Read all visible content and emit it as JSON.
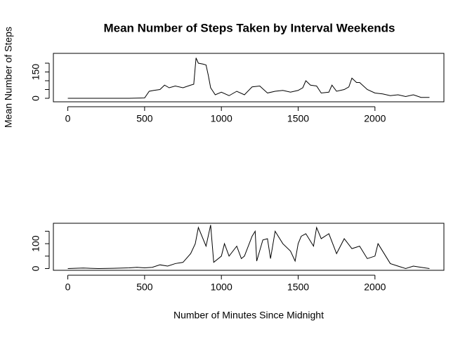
{
  "chart_data": [
    {
      "type": "line",
      "title": "Mean Number of Steps Taken by Interval Weekends",
      "y_label": "Mean Number of Steps",
      "x": [
        0,
        100,
        200,
        300,
        400,
        500,
        530,
        560,
        600,
        630,
        660,
        700,
        750,
        800,
        820,
        835,
        850,
        880,
        900,
        915,
        930,
        960,
        1000,
        1050,
        1100,
        1150,
        1200,
        1250,
        1300,
        1350,
        1400,
        1450,
        1500,
        1530,
        1550,
        1580,
        1620,
        1650,
        1700,
        1720,
        1750,
        1800,
        1830,
        1850,
        1880,
        1900,
        1950,
        2000,
        2050,
        2100,
        2150,
        2200,
        2250,
        2300,
        2355
      ],
      "series": [
        {
          "color": "#000000",
          "values": [
            0,
            0,
            0,
            0,
            0,
            2,
            40,
            45,
            50,
            75,
            60,
            70,
            60,
            75,
            80,
            230,
            200,
            195,
            190,
            130,
            60,
            20,
            35,
            15,
            40,
            20,
            65,
            70,
            30,
            40,
            45,
            35,
            45,
            60,
            100,
            75,
            70,
            30,
            35,
            75,
            40,
            50,
            65,
            115,
            90,
            90,
            50,
            30,
            25,
            15,
            20,
            10,
            20,
            5,
            5
          ]
        }
      ],
      "xlim": [
        -94,
        2449
      ],
      "ylim": [
        -20,
        256
      ],
      "xticks": [
        0,
        500,
        1000,
        1500,
        2000
      ],
      "yticks": [
        0,
        150
      ],
      "yminorticks": [
        50,
        100,
        200
      ]
    },
    {
      "type": "line",
      "x_label": "Number of Minutes Since Midnight",
      "x": [
        0,
        100,
        200,
        300,
        400,
        450,
        500,
        550,
        600,
        650,
        700,
        750,
        800,
        830,
        850,
        880,
        900,
        930,
        950,
        1000,
        1020,
        1050,
        1100,
        1130,
        1150,
        1200,
        1220,
        1230,
        1270,
        1300,
        1320,
        1350,
        1400,
        1450,
        1480,
        1500,
        1520,
        1550,
        1600,
        1620,
        1650,
        1700,
        1750,
        1800,
        1850,
        1900,
        1950,
        2000,
        2020,
        2050,
        2100,
        2150,
        2200,
        2250,
        2300,
        2355
      ],
      "series": [
        {
          "color": "#000000",
          "values": [
            0,
            2,
            0,
            1,
            3,
            5,
            3,
            5,
            15,
            10,
            20,
            25,
            60,
            100,
            165,
            120,
            90,
            175,
            25,
            50,
            100,
            50,
            90,
            40,
            50,
            130,
            150,
            30,
            115,
            120,
            40,
            150,
            100,
            70,
            30,
            100,
            130,
            140,
            90,
            165,
            120,
            140,
            60,
            120,
            80,
            90,
            40,
            50,
            100,
            70,
            20,
            10,
            0,
            10,
            5,
            0
          ]
        }
      ],
      "xlim": [
        -94,
        2449
      ],
      "ylim": [
        -7,
        182
      ],
      "xticks": [
        0,
        500,
        1000,
        1500,
        2000
      ],
      "yticks": [
        0,
        100
      ],
      "yminorticks": [
        50,
        150
      ]
    }
  ]
}
